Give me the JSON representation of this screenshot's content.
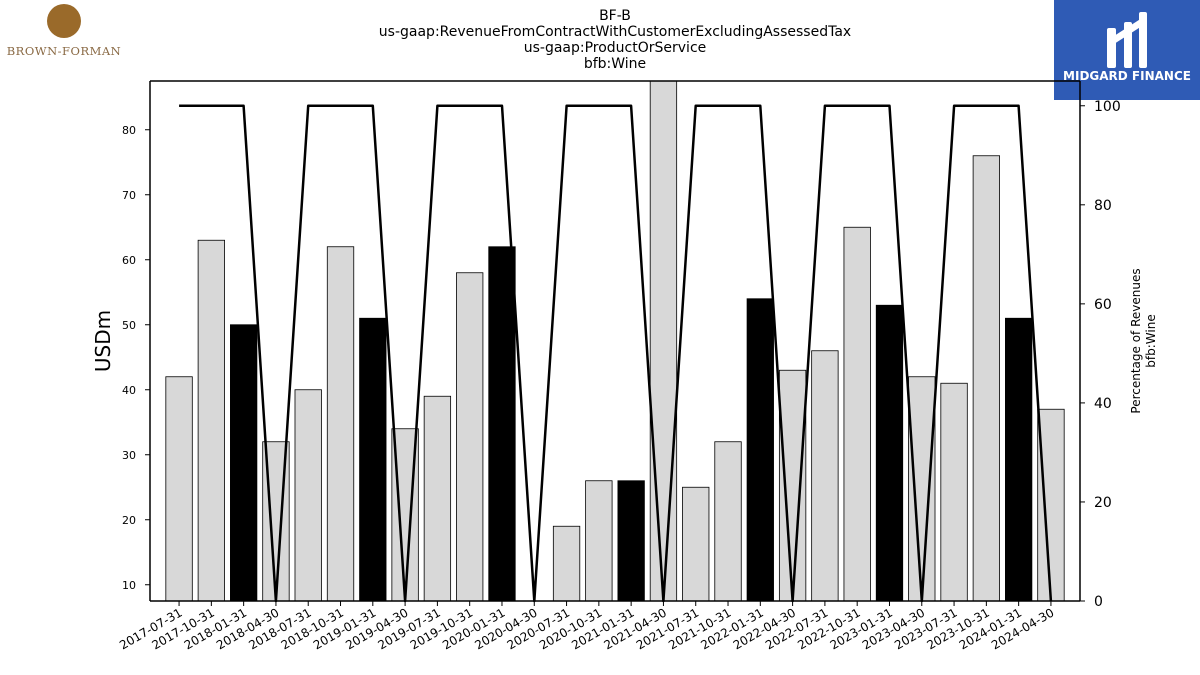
{
  "title_lines": [
    "BF-B",
    "us-gaap:RevenueFromContractWithCustomerExcludingAssessedTax",
    "us-gaap:ProductOrService",
    "bfb:Wine"
  ],
  "logos": {
    "left_name": "BROWN-FORMAN",
    "right_name": "MIDGARD FINANCE",
    "right_bg": "#2f5bb5"
  },
  "chart_data": {
    "type": "bar",
    "categories": [
      "2017-07-31",
      "2017-10-31",
      "2018-01-31",
      "2018-04-30",
      "2018-07-31",
      "2018-10-31",
      "2019-01-31",
      "2019-04-30",
      "2019-07-31",
      "2019-10-31",
      "2020-01-31",
      "2020-04-30",
      "2020-07-31",
      "2020-10-31",
      "2021-01-31",
      "2021-04-30",
      "2021-07-31",
      "2021-10-31",
      "2022-01-31",
      "2022-04-30",
      "2022-07-31",
      "2022-10-31",
      "2023-01-31",
      "2023-04-30",
      "2023-07-31",
      "2023-10-31",
      "2024-01-31",
      "2024-04-30"
    ],
    "values": [
      42,
      63,
      50,
      32,
      40,
      62,
      51,
      34,
      39,
      58,
      62,
      7,
      19,
      26,
      26,
      88,
      25,
      32,
      54,
      43,
      46,
      65,
      53,
      42,
      41,
      76,
      51,
      37
    ],
    "highlighted": [
      false,
      false,
      true,
      false,
      false,
      false,
      true,
      false,
      false,
      false,
      true,
      false,
      false,
      false,
      true,
      false,
      false,
      false,
      true,
      false,
      false,
      false,
      true,
      false,
      false,
      false,
      true,
      false
    ],
    "percentage_series": [
      100,
      100,
      100,
      0,
      100,
      100,
      100,
      0,
      100,
      100,
      100,
      0,
      100,
      100,
      100,
      0,
      100,
      100,
      100,
      0,
      100,
      100,
      100,
      0,
      100,
      100,
      100,
      0
    ],
    "ylabel": "USDm",
    "y2label_lines": [
      "Percentage of Revenues",
      "bfb:Wine"
    ],
    "ylim": [
      7.5,
      87.5
    ],
    "yticks": [
      10,
      20,
      30,
      40,
      50,
      60,
      70,
      80
    ],
    "y2lim": [
      0,
      105
    ],
    "y2ticks": [
      0,
      20,
      40,
      60,
      80,
      100
    ],
    "colors": {
      "bar": "#d8d8d8",
      "bar_highlight": "#000000",
      "line": "#000000"
    }
  }
}
